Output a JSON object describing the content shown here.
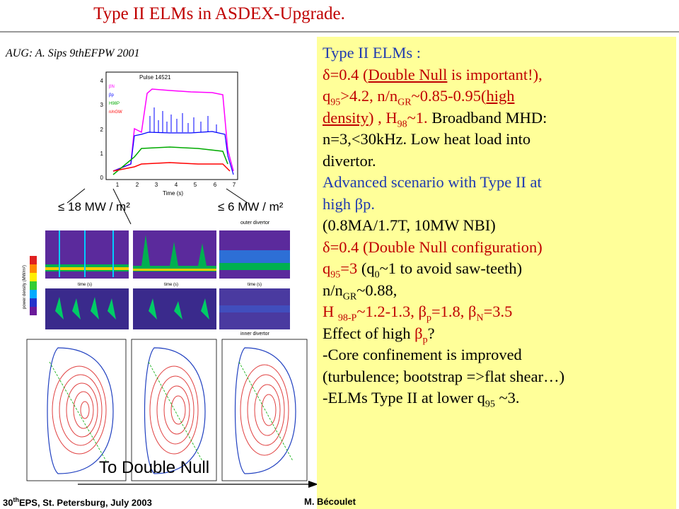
{
  "slide": {
    "title": "Type II ELMs in ASDEX-Upgrade.",
    "credit": "AUG: A. Sips 9thEFPW 2001",
    "caption": "To Double Null",
    "footer_prefix": "30",
    "footer_sup": "th",
    "footer_rest": "EPS, St. Petersburg, July 2003",
    "footer_author": "M. Bécoulet"
  },
  "figure": {
    "pulse": "Pulse 14521",
    "time_axis_label": "Time (s)",
    "time_ticks": [
      "1",
      "2",
      "3",
      "4",
      "5",
      "6",
      "7"
    ],
    "y_ticks": [
      "0",
      "1",
      "2",
      "3",
      "4"
    ],
    "legend": [
      "βN",
      "βp",
      "H98P",
      "n/nGW"
    ],
    "legend_colors": [
      "#ff00ff",
      "#0000ff",
      "#00aa00",
      "#ff0000"
    ],
    "load_left": "≤ 18 MW / m²",
    "load_right": "≤ 6 MW / m²",
    "outer_divertor": "outer divertor",
    "inner_divertor": "inner divertor",
    "spectro_time_label": "time (s)",
    "colorbar_label": "power density (MW/m²)"
  },
  "panel": {
    "l1": "Type II ELMs :",
    "l2a": "δ=0.4 (",
    "l2u": "Double Null",
    "l2b": " is important!),",
    "l3a": "q",
    "l3s1": "95",
    "l3b": ">4.2, n/n",
    "l3s2": "GR",
    "l3c": "~0.85-0.95(",
    "l3u": "high",
    "l4u": "density",
    "l4a": ") , H",
    "l4s": "98",
    "l4b": "~1.",
    "l4c": " Broadband MHD:",
    "l5": "n=3,<30kHz. Low heat load into",
    "l6": "divertor.",
    "l7": "Advanced scenario with Type II at",
    "l8": "high βp.",
    "l9": "(0.8MA/1.7T, 10MW NBI)",
    "l10": "δ=0.4 (Double Null configuration)",
    "l11a": "q",
    "l11s1": "95",
    "l11b": "=3",
    "l11c": " (q",
    "l11s2": "0",
    "l11d": "~1 to avoid saw-teeth)",
    "l12a": "n/n",
    "l12s": "GR",
    "l12b": "~0.88,",
    "l13a": "H ",
    "l13s1": "98-P",
    "l13b": "~1.2-1.3, β",
    "l13s2": "p",
    "l13c": "=1.8, β",
    "l13s3": "N",
    "l13d": "=3.5",
    "l14a": "Effect of high ",
    "l14b": "β",
    "l14s": "p",
    "l14c": "?",
    "l15": "-Core confinement is improved",
    "l16": "(turbulence; bootstrap =>flat shear…)",
    "l17a": "-ELMs Type II at lower q",
    "l17s": "95",
    "l17b": " ~3."
  },
  "colors": {
    "title": "#c00000",
    "panel_bg": "#ffff99",
    "highlight_red": "#c00000",
    "highlight_blue": "#1f3ab0"
  }
}
